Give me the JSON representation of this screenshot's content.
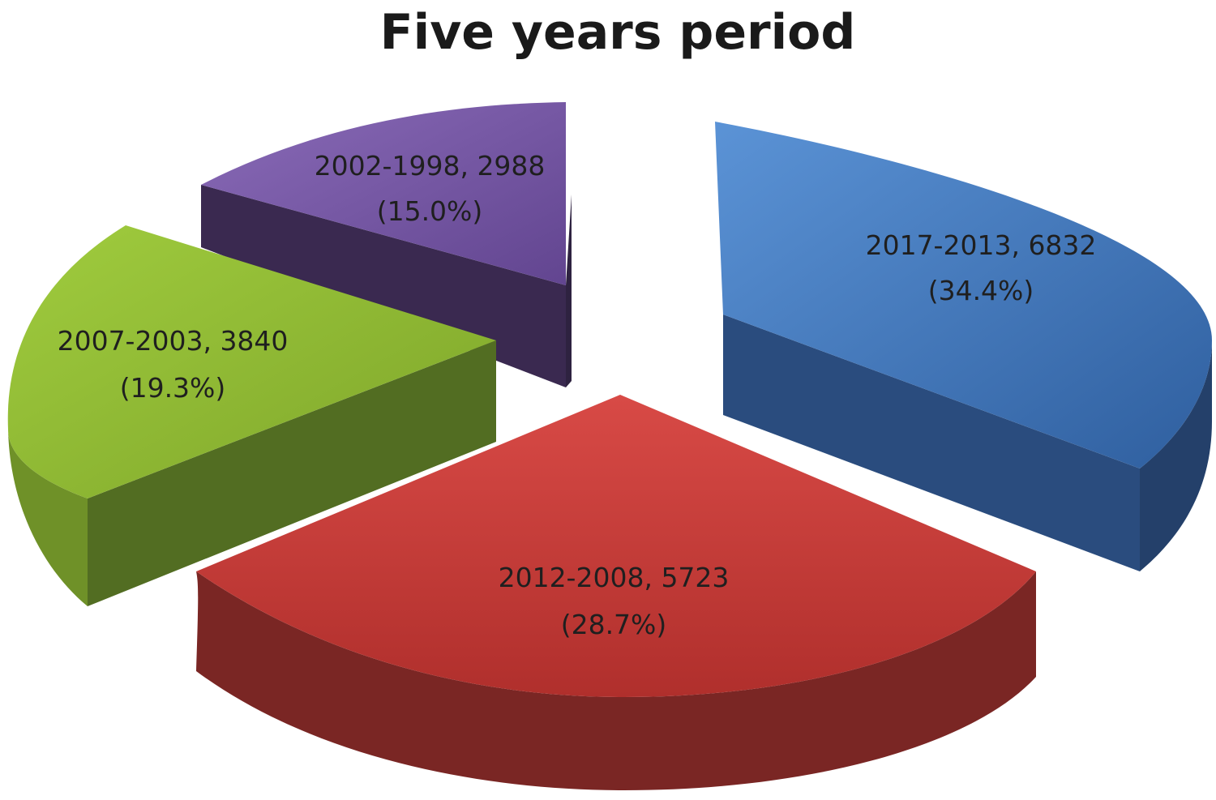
{
  "chart_data": {
    "type": "pie",
    "style": "3d-exploded",
    "title": "Five years period",
    "slices": [
      {
        "label": "2017-2013",
        "value": 6832,
        "percent_label": "(34.4%)",
        "color": "#4a7ec4"
      },
      {
        "label": "2012-2008",
        "value": 5723,
        "percent_label": "(28.7%)",
        "color": "#cc3b38"
      },
      {
        "label": "2007-2003",
        "value": 3840,
        "percent_label": "(19.3%)",
        "color": "#8db932"
      },
      {
        "label": "2002-1998",
        "value": 2988,
        "percent_label": "(15.0%)",
        "color": "#7a5aa6"
      }
    ]
  }
}
